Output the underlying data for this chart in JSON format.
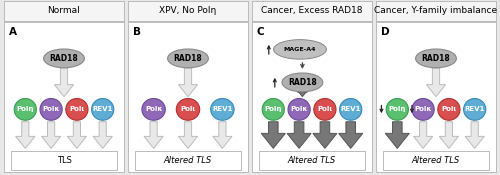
{
  "panels": [
    {
      "label": "A",
      "title": "Normal",
      "polymerases": [
        "Polη",
        "Polκ",
        "Polι",
        "REV1"
      ],
      "poly_colors": [
        "#5abf6e",
        "#9068b8",
        "#d94f4f",
        "#5fadd4"
      ],
      "poly_outline": [
        "#3a9e52",
        "#6a4a9a",
        "#b03030",
        "#3a8ab8"
      ],
      "arrow_main_large": false,
      "arrows_down_large": [
        false,
        false,
        false,
        false
      ],
      "tls_label": "TLS",
      "tls_italic": false,
      "mage_a4": false,
      "rad18_up_arrow": false,
      "poly_side_arrows": []
    },
    {
      "label": "B",
      "title": "XPV, No Polη",
      "polymerases": [
        "Polκ",
        "Polι",
        "REV1"
      ],
      "poly_colors": [
        "#9068b8",
        "#d94f4f",
        "#5fadd4"
      ],
      "poly_outline": [
        "#6a4a9a",
        "#b03030",
        "#3a8ab8"
      ],
      "arrow_main_large": false,
      "arrows_down_large": [
        false,
        false,
        false
      ],
      "tls_label": "Altered TLS",
      "tls_italic": true,
      "mage_a4": false,
      "rad18_up_arrow": false,
      "poly_side_arrows": []
    },
    {
      "label": "C",
      "title": "Cancer, Excess RAD18",
      "polymerases": [
        "Polη",
        "Polκ",
        "Polι",
        "REV1"
      ],
      "poly_colors": [
        "#5abf6e",
        "#9068b8",
        "#d94f4f",
        "#5fadd4"
      ],
      "poly_outline": [
        "#3a9e52",
        "#6a4a9a",
        "#b03030",
        "#3a8ab8"
      ],
      "arrow_main_large": true,
      "arrows_down_large": [
        true,
        true,
        true,
        true
      ],
      "tls_label": "Altered TLS",
      "tls_italic": true,
      "mage_a4": true,
      "rad18_up_arrow": true,
      "poly_side_arrows": []
    },
    {
      "label": "D",
      "title": "Cancer, Y-family imbalance",
      "polymerases": [
        "Polη",
        "Polκ",
        "Polι",
        "REV1"
      ],
      "poly_colors": [
        "#5abf6e",
        "#9068b8",
        "#d94f4f",
        "#5fadd4"
      ],
      "poly_outline": [
        "#3a9e52",
        "#6a4a9a",
        "#b03030",
        "#3a8ab8"
      ],
      "arrow_main_large": false,
      "arrows_down_large": [
        true,
        false,
        false,
        false
      ],
      "tls_label": "Altered TLS",
      "tls_italic": true,
      "mage_a4": false,
      "rad18_up_arrow": false,
      "poly_side_arrows": [
        "left_poleta",
        "between_poleta_polkappa"
      ]
    }
  ],
  "outer_bg": "#e8e8e8",
  "title_bg": "#f5f5f5",
  "panel_bg": "#ffffff",
  "border_color": "#bbbbbb",
  "rad18_fill": "#b0b0b0",
  "rad18_edge": "#888888",
  "mage_fill": "#c0c0c0",
  "mage_edge": "#888888",
  "arrow_small_color": "#bbbbbb",
  "arrow_small_edge": "#999999",
  "arrow_large_color": "#777777",
  "arrow_large_edge": "#555555",
  "updown_arrow_color": "#222222",
  "title_fontsize": 6.5,
  "label_fontsize": 7.5,
  "poly_fontsize": 5.0,
  "tls_fontsize": 6.0,
  "rad18_fontsize": 5.5,
  "mage_fontsize": 4.5
}
